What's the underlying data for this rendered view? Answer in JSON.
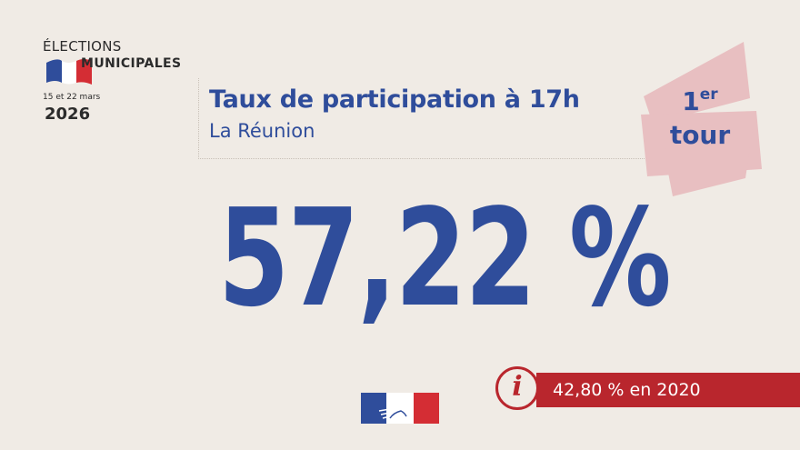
{
  "logo": {
    "line1": "ÉLECTIONS",
    "line2": "MUNICIPALES",
    "dates": "15 et 22 mars",
    "year": "2026"
  },
  "header": {
    "title": "Taux de participation à 17h",
    "subtitle": "La Réunion"
  },
  "round": {
    "number": "1",
    "suffix": "er",
    "word": "tour"
  },
  "participation": {
    "value_text": "57,22 %"
  },
  "previous": {
    "info_icon": "i",
    "text": "42,80 % en 2020"
  },
  "colors": {
    "blue": "#2f4d9b",
    "red": "#b9262d",
    "pink_banner": "#e8bfc1",
    "background": "#f0ebe5"
  },
  "icons": {
    "flag": "french-flag-icon",
    "marianne": "marianne-logo-icon",
    "info": "info-icon"
  }
}
